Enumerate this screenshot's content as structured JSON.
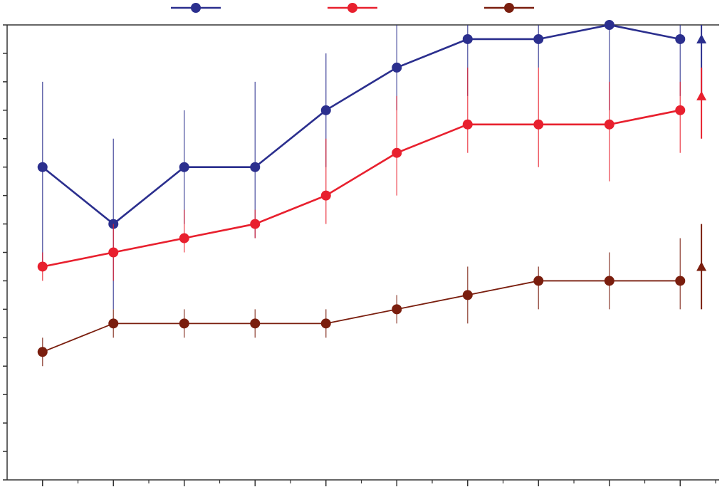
{
  "chart_data": {
    "type": "line",
    "title": "",
    "xlabel": "",
    "ylabel": "",
    "x": [
      1,
      2,
      3,
      4,
      5,
      6,
      7,
      8,
      9,
      10
    ],
    "xlim": [
      0.5,
      10.55
    ],
    "ylim": [
      0,
      16
    ],
    "grid": false,
    "legend_position": "top-center",
    "series": [
      {
        "color": "#2b2f8e",
        "values": [
          11,
          9,
          11,
          11,
          13,
          14.5,
          15.5,
          15.5,
          16,
          15.5
        ],
        "err_low": [
          7.5,
          6,
          9,
          8.5,
          11,
          13,
          13.5,
          14.5,
          13,
          13.5
        ],
        "err_high": [
          14,
          12,
          13,
          14,
          15,
          16,
          16,
          16,
          16,
          16
        ],
        "marker_err_low": [
          8,
          8,
          9,
          9,
          11,
          12,
          14,
          13,
          11,
          13.5
        ],
        "marker_err_high": [
          13,
          11,
          13,
          13,
          14.5,
          15.5,
          16,
          16,
          16,
          16
        ],
        "overall": {
          "value": 15.5,
          "low": 13.5,
          "high": 16
        }
      },
      {
        "color": "#e8202e",
        "values": [
          7.5,
          8,
          8.5,
          9,
          10,
          11.5,
          12.5,
          12.5,
          12.5,
          13
        ],
        "err_low": [
          7,
          7,
          8,
          8.5,
          9,
          10,
          11.5,
          11,
          10.5,
          11.5
        ],
        "err_high": [
          8,
          9,
          9.5,
          9.5,
          12,
          13.5,
          14.5,
          14.5,
          14,
          14
        ],
        "overall": {
          "value": 13.5,
          "low": 12,
          "high": 14.5
        }
      },
      {
        "color": "#7a1e0e",
        "values": [
          4.5,
          5.5,
          5.5,
          5.5,
          5.5,
          6,
          6.5,
          7,
          7,
          7
        ],
        "err_low": [
          4,
          5,
          5,
          5,
          5,
          5.5,
          5.5,
          6,
          6,
          6
        ],
        "err_high": [
          5,
          6,
          6,
          6,
          6,
          6.5,
          7.5,
          7.5,
          8,
          8.5
        ],
        "overall": {
          "value": 7.5,
          "low": 6,
          "high": 9
        }
      }
    ]
  }
}
